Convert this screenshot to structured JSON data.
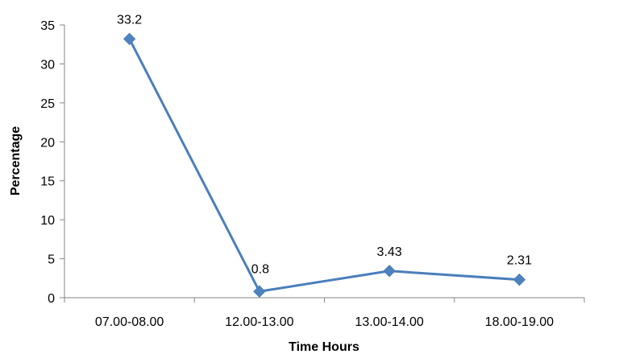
{
  "chart_data": {
    "type": "line",
    "categories": [
      "07.00-08.00",
      "12.00-13.00",
      "13.00-14.00",
      "18.00-19.00"
    ],
    "values": [
      33.2,
      0.8,
      3.43,
      2.31
    ],
    "data_labels": [
      "33.2",
      "0.8",
      "3.43",
      "2.31"
    ],
    "xlabel": "Time Hours",
    "ylabel": "Percentage",
    "ylim": [
      0,
      35
    ],
    "yticks": [
      0,
      5,
      10,
      15,
      20,
      25,
      30,
      35
    ],
    "grid": false,
    "legend": "none",
    "marker": "diamond",
    "line_color": "#4A7EBB",
    "marker_color": "#4F81BD"
  }
}
